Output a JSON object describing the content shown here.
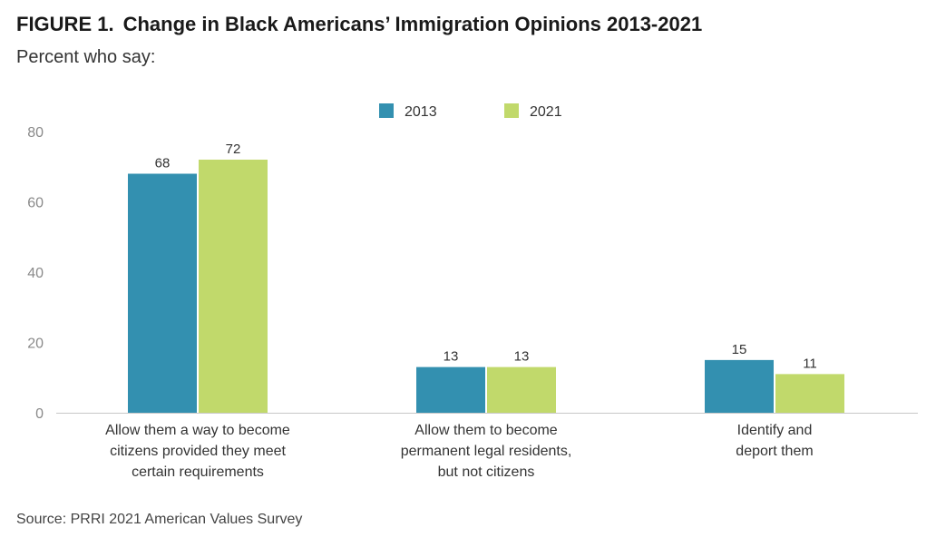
{
  "figure": {
    "label": "FIGURE 1.",
    "title": "Change in Black Americans’ Immigration Opinions 2013-2021",
    "subtitle": "Percent who say:",
    "source": "Source: PRRI 2021 American Values Survey"
  },
  "chart_data": {
    "type": "bar",
    "categories": [
      [
        "Allow them a way to become",
        "citizens provided they meet",
        "certain requirements"
      ],
      [
        "Allow them to become",
        "permanent legal residents,",
        "but not citizens"
      ],
      [
        "Identify and",
        "deport them"
      ]
    ],
    "series": [
      {
        "name": "2013",
        "color": "#3390b0",
        "values": [
          68,
          13,
          15
        ]
      },
      {
        "name": "2021",
        "color": "#c1d96b",
        "values": [
          72,
          13,
          11
        ]
      }
    ],
    "ylim": [
      0,
      80
    ],
    "yticks": [
      0,
      20,
      40,
      60,
      80
    ],
    "grid": false,
    "legend": "top-center"
  }
}
